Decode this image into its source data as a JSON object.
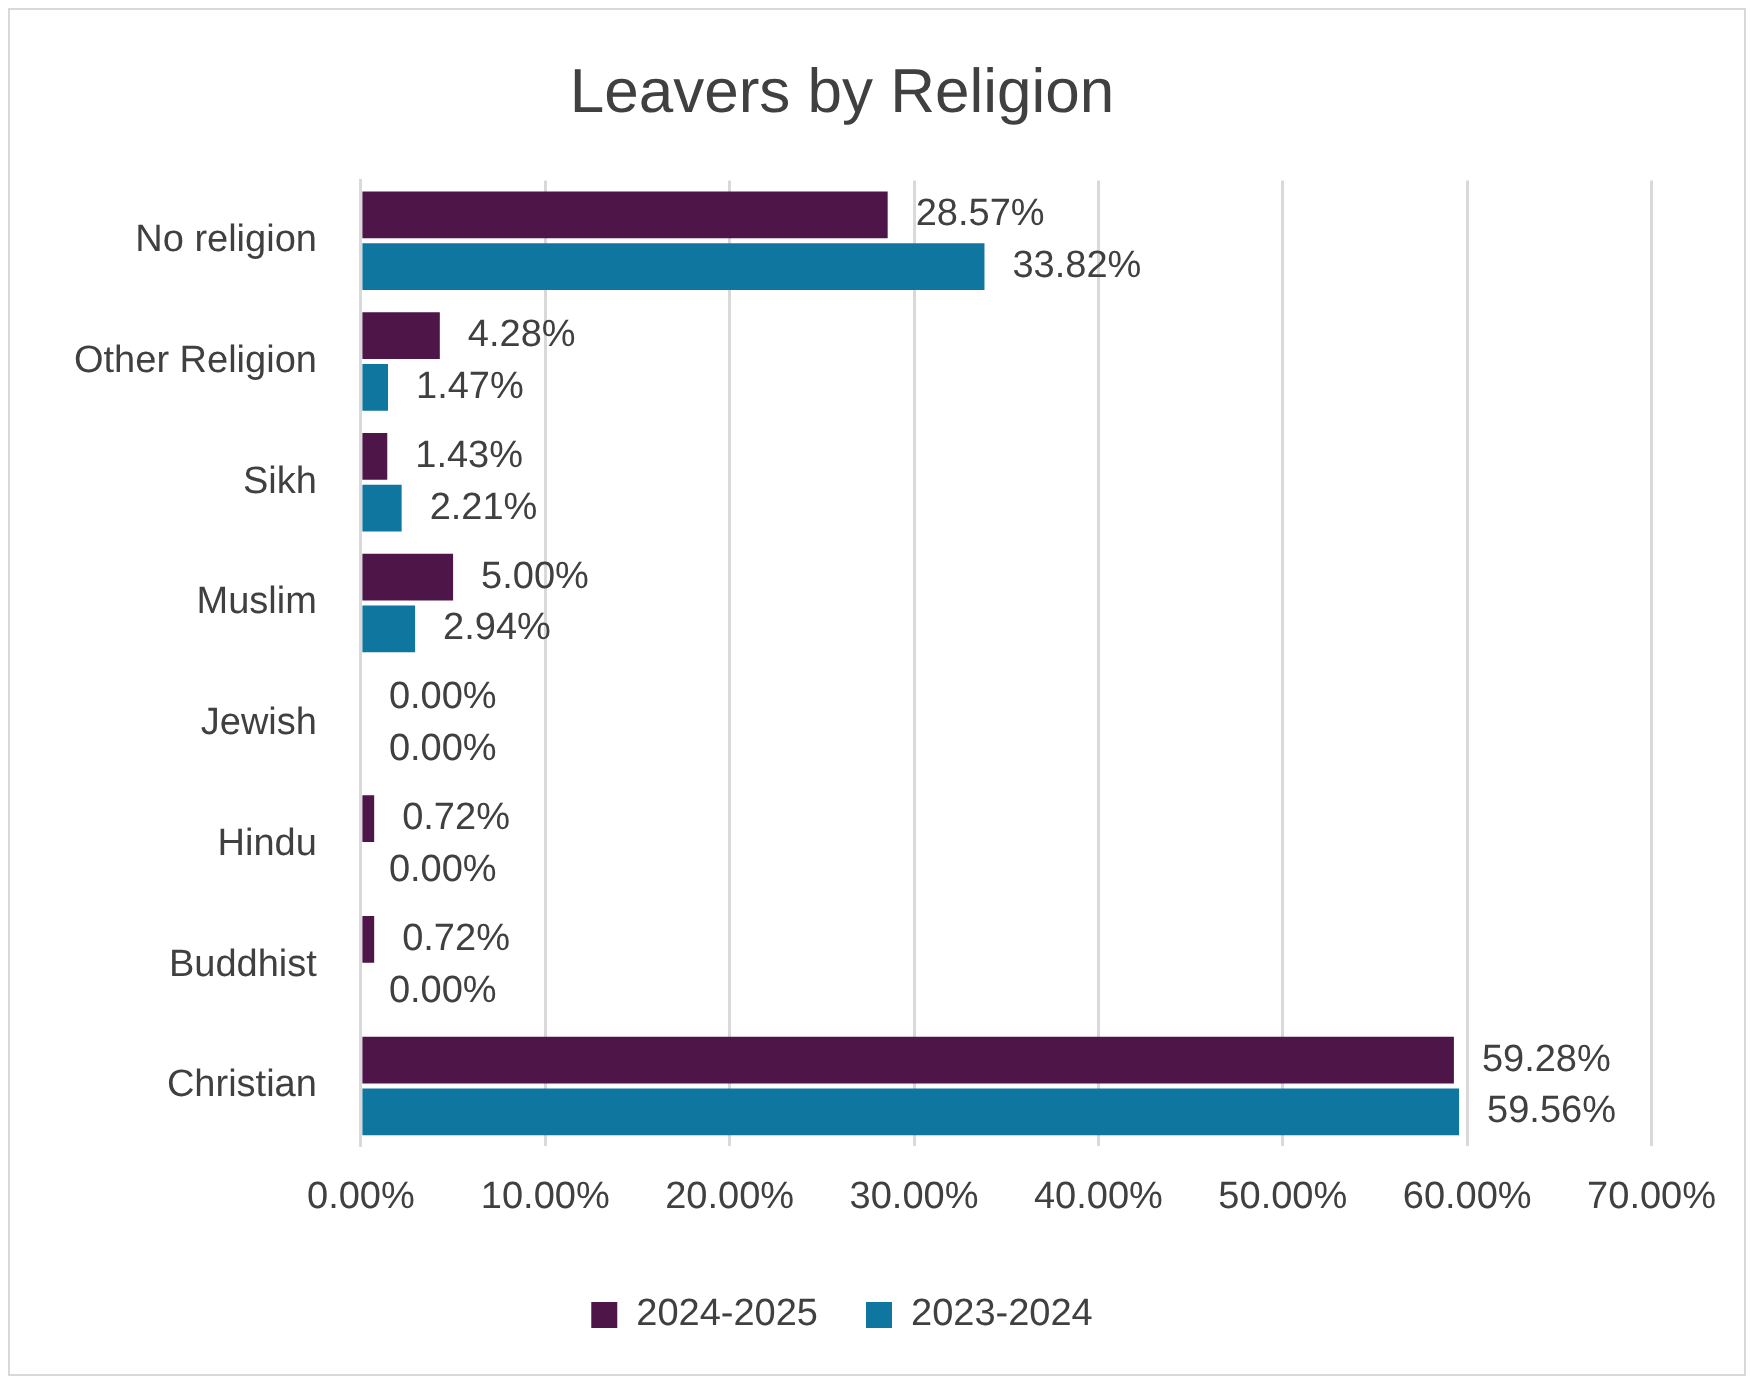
{
  "chart_data": {
    "type": "bar",
    "orientation": "horizontal",
    "title": "Leavers by Religion",
    "categories": [
      "No religion",
      "Other Religion",
      "Sikh",
      "Muslim",
      "Jewish",
      "Hindu",
      "Buddhist",
      "Christian"
    ],
    "series": [
      {
        "name": "2024-2025",
        "color": "#4e1548",
        "values": [
          28.57,
          4.28,
          1.43,
          5.0,
          0,
          0.72,
          0.72,
          59.28
        ],
        "value_labels": [
          "28.57%",
          "4.28%",
          "1.43%",
          "5.00%",
          "0.00%",
          "0.72%",
          "0.72%",
          "59.28%"
        ]
      },
      {
        "name": "2023-2024",
        "color": "#0f769f",
        "values": [
          33.82,
          1.47,
          2.21,
          2.94,
          0,
          0,
          0,
          59.56
        ],
        "value_labels": [
          "33.82%",
          "1.47%",
          "2.21%",
          "2.94%",
          "0.00%",
          "0.00%",
          "0.00%",
          "59.56%"
        ]
      }
    ],
    "xlim": [
      0,
      70
    ],
    "xticks": [
      {
        "value": 0,
        "label": "0.00%"
      },
      {
        "value": 10,
        "label": "10.00%"
      },
      {
        "value": 20,
        "label": "20.00%"
      },
      {
        "value": 30,
        "label": "30.00%"
      },
      {
        "value": 40,
        "label": "40.00%"
      },
      {
        "value": 50,
        "label": "50.00%"
      },
      {
        "value": 60,
        "label": "60.00%"
      },
      {
        "value": 70,
        "label": "70.00%"
      }
    ],
    "grid": "x",
    "legend": "bottom"
  }
}
